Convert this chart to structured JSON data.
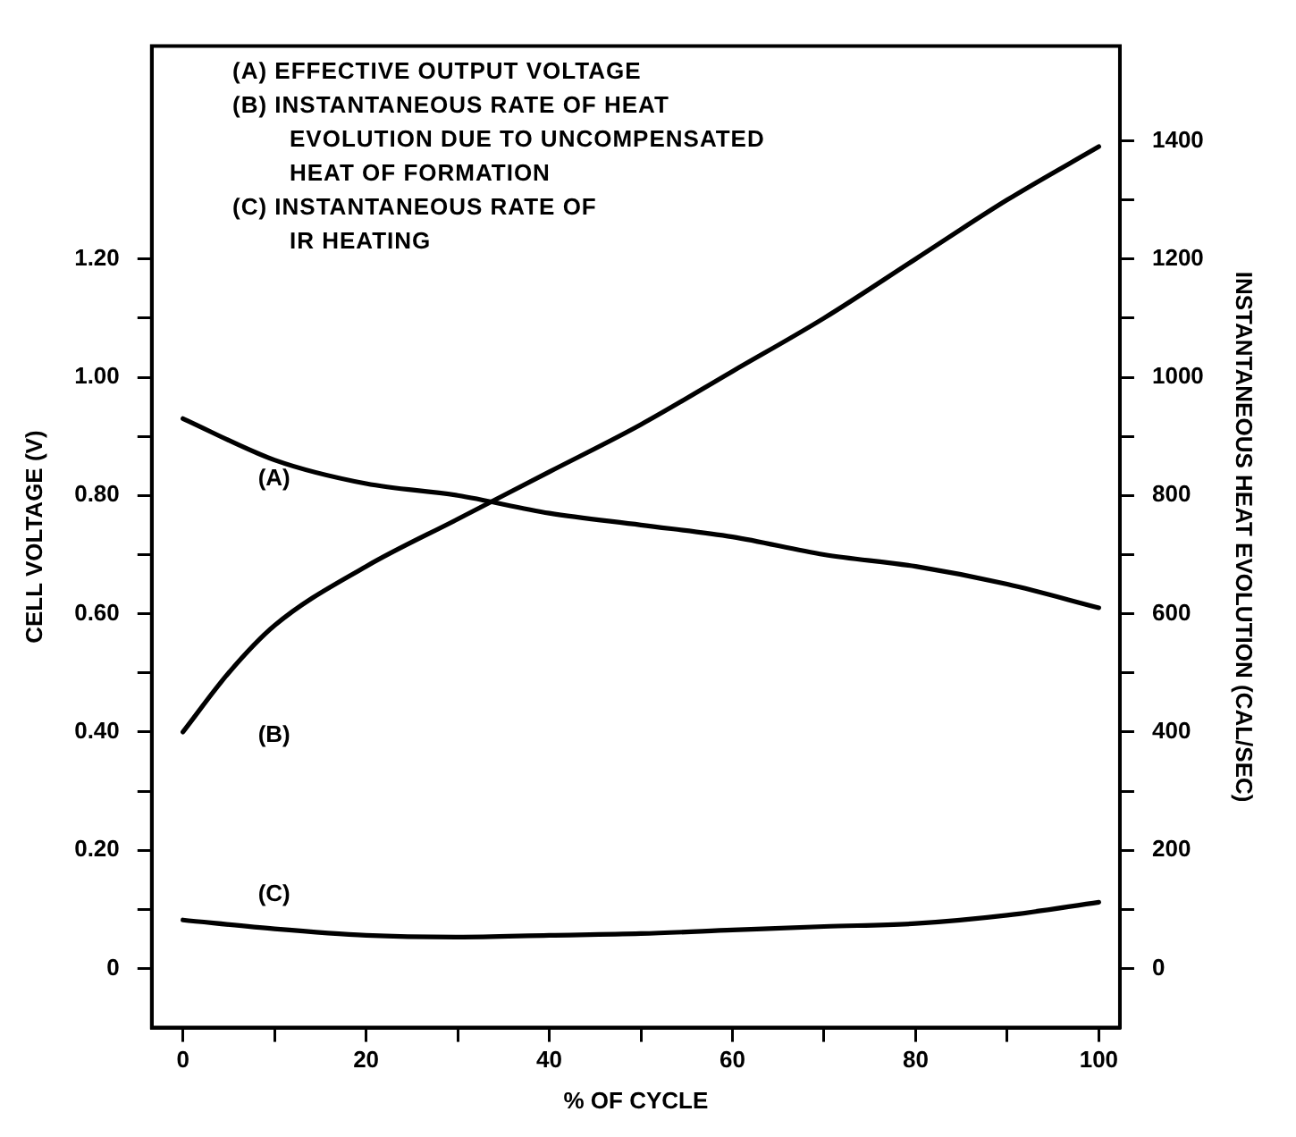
{
  "chart_data": {
    "type": "line",
    "xlabel": "% OF CYCLE",
    "ylabel": "CELL VOLTAGE (V)",
    "y2label": "INSTANTANEOUS HEAT EVOLUTION (CAL/SEC)",
    "annotations": [
      "(A) EFFECTIVE OUTPUT VOLTAGE",
      "(B) INSTANTANEOUS RATE OF HEAT\nEVOLUTION DUE TO UNCOMPENSATED\nHEAT OF FORMATION",
      "(C) INSTANTANEOUS RATE OF\nIR HEATING"
    ],
    "x": [
      0,
      10,
      20,
      30,
      40,
      50,
      60,
      70,
      80,
      90,
      100
    ],
    "series": [
      {
        "name": "(A)",
        "color": "#000000",
        "values": [
          0.93,
          0.86,
          0.82,
          0.8,
          0.77,
          0.75,
          0.73,
          0.7,
          0.68,
          0.65,
          0.61
        ]
      },
      {
        "name": "(B)",
        "color": "#000000",
        "axis": "y2",
        "x": [
          0,
          5,
          10,
          20,
          30,
          40,
          50,
          60,
          70,
          80,
          90,
          100
        ],
        "values": [
          400,
          500,
          580,
          680,
          760,
          840,
          920,
          1010,
          1100,
          1200,
          1300,
          1390
        ]
      },
      {
        "name": "(C)",
        "color": "#000000",
        "axis": "y2",
        "values": [
          82,
          67,
          56,
          53,
          56,
          59,
          65,
          71,
          76,
          90,
          112
        ]
      }
    ],
    "xlim": [
      -3.4,
      102.3
    ],
    "xticks": [
      0,
      {
        "value": 10,
        "label": null
      },
      20,
      {
        "value": 30,
        "label": null
      },
      40,
      {
        "value": 50,
        "label": null
      },
      60,
      {
        "value": 70,
        "label": null
      },
      80,
      {
        "value": 90,
        "label": null
      },
      100
    ],
    "ylim": [
      -0.1,
      1.56
    ],
    "yticks": [
      {
        "value": 0,
        "label": "0"
      },
      {
        "value": 0.1,
        "label": null
      },
      {
        "value": 0.2,
        "label": "0.20"
      },
      {
        "value": 0.3,
        "label": null
      },
      {
        "value": 0.4,
        "label": "0.40"
      },
      {
        "value": 0.5,
        "label": null
      },
      {
        "value": 0.6,
        "label": "0.60"
      },
      {
        "value": 0.7,
        "label": null
      },
      {
        "value": 0.8,
        "label": "0.80"
      },
      {
        "value": 0.9,
        "label": null
      },
      {
        "value": 1,
        "label": "1.00"
      },
      {
        "value": 1.1,
        "label": null
      },
      {
        "value": 1.2,
        "label": "1.20"
      }
    ],
    "y2lim": [
      -100,
      1560
    ],
    "y2ticks": [
      0,
      {
        "value": 100,
        "label": null
      },
      200,
      {
        "value": 300,
        "label": null
      },
      400,
      {
        "value": 500,
        "label": null
      },
      600,
      {
        "value": 700,
        "label": null
      },
      800,
      {
        "value": 900,
        "label": null
      },
      1000,
      {
        "value": 1100,
        "label": null
      },
      1200,
      {
        "value": 1300,
        "label": null
      },
      1400
    ],
    "grid": false,
    "legend": false,
    "marker": "none",
    "line_style": "solid"
  }
}
